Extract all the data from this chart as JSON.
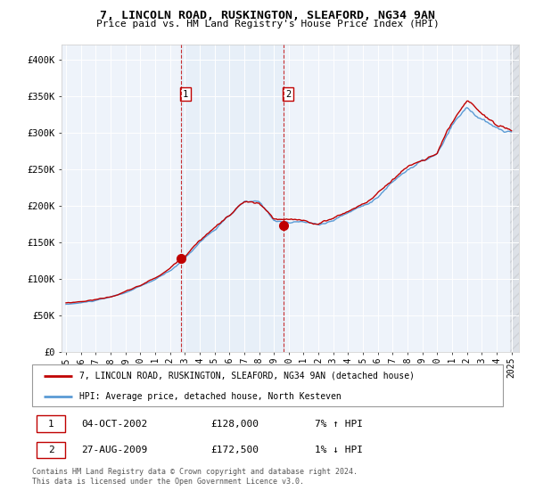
{
  "title": "7, LINCOLN ROAD, RUSKINGTON, SLEAFORD, NG34 9AN",
  "subtitle": "Price paid vs. HM Land Registry's House Price Index (HPI)",
  "sale1_x": 2002.75,
  "sale1_y": 128000,
  "sale1_label": "1",
  "sale2_x": 2009.65,
  "sale2_y": 172500,
  "sale2_label": "2",
  "ylim_min": 0,
  "ylim_max": 420000,
  "yticks": [
    0,
    50000,
    100000,
    150000,
    200000,
    250000,
    300000,
    350000,
    400000
  ],
  "ytick_labels": [
    "£0",
    "£50K",
    "£100K",
    "£150K",
    "£200K",
    "£250K",
    "£300K",
    "£350K",
    "£400K"
  ],
  "xtick_years": [
    1995,
    1996,
    1997,
    1998,
    1999,
    2000,
    2001,
    2002,
    2003,
    2004,
    2005,
    2006,
    2007,
    2008,
    2009,
    2010,
    2011,
    2012,
    2013,
    2014,
    2015,
    2016,
    2017,
    2018,
    2019,
    2020,
    2021,
    2022,
    2023,
    2024,
    2025
  ],
  "hpi_color": "#5b9bd5",
  "price_color": "#c00000",
  "fill_color": "#dce9f5",
  "vline_color": "#c00000",
  "bg_color": "#eef3fa",
  "legend_line1": "7, LINCOLN ROAD, RUSKINGTON, SLEAFORD, NG34 9AN (detached house)",
  "legend_line2": "HPI: Average price, detached house, North Kesteven",
  "table_row1": [
    "1",
    "04-OCT-2002",
    "£128,000",
    "7% ↑ HPI"
  ],
  "table_row2": [
    "2",
    "27-AUG-2009",
    "£172,500",
    "1% ↓ HPI"
  ],
  "footer": "Contains HM Land Registry data © Crown copyright and database right 2024.\nThis data is licensed under the Open Government Licence v3.0.",
  "xlim_min": 1994.7,
  "xlim_max": 2025.5
}
